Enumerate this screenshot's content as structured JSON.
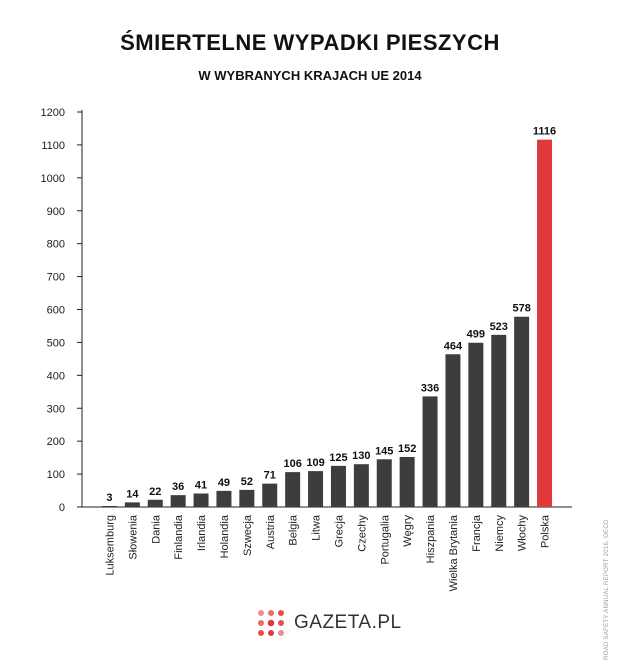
{
  "header": {
    "title": "ŚMIERTELNE WYPADKI PIESZYCH",
    "subtitle": "W WYBRANYCH KRAJACH UE 2014"
  },
  "chart_data": {
    "type": "bar",
    "title": "ŚMIERTELNE WYPADKI PIESZYCH",
    "subtitle": "W WYBRANYCH KRAJACH UE 2014",
    "categories": [
      "Luksemburg",
      "Słowenia",
      "Dania",
      "Finlandia",
      "Irlandia",
      "Holandia",
      "Szwecja",
      "Austria",
      "Belgia",
      "Litwa",
      "Grecja",
      "Czechy",
      "Portugalia",
      "Węgry",
      "Hiszpania",
      "Wielka Brytania",
      "Francja",
      "Niemcy",
      "Włochy",
      "Polska"
    ],
    "values": [
      3,
      14,
      22,
      36,
      41,
      49,
      52,
      71,
      106,
      109,
      125,
      130,
      145,
      152,
      336,
      464,
      499,
      523,
      578,
      1116
    ],
    "ylim": [
      0,
      1200
    ],
    "yticks": [
      0,
      100,
      200,
      300,
      400,
      500,
      600,
      700,
      800,
      900,
      1000,
      1100,
      1200
    ],
    "xlabel": "",
    "ylabel": "",
    "grid": false,
    "colors": {
      "default": "#3d3d3d",
      "highlight": "#e0393b"
    },
    "highlight_category": "Polska"
  },
  "source": "ROAD SAFETY ANNUAL REPORT 2016, OECD",
  "logo": {
    "text": "GAZETA.PL",
    "icon": "gazeta-dots-logo-icon"
  }
}
